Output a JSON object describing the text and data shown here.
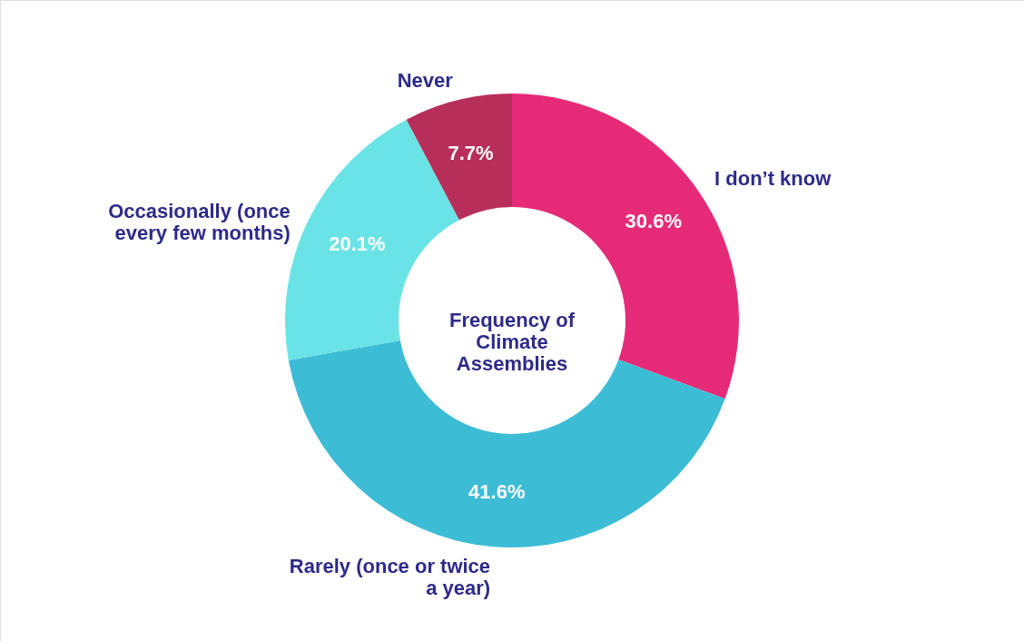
{
  "chart_data": {
    "type": "donut",
    "title": "Frequency of Climate Assemblies",
    "categories": [
      "I don’t know",
      "Rarely (once or twice\na year)",
      "Occasionally (once\nevery few months)",
      "Never"
    ],
    "values": [
      30.6,
      41.6,
      20.1,
      7.7
    ],
    "value_labels": [
      "30.6%",
      "41.6%",
      "20.1%",
      "7.7%"
    ],
    "colors": [
      "#e52b78",
      "#3dbcd6",
      "#6ae3e6",
      "#b82e5a"
    ]
  }
}
